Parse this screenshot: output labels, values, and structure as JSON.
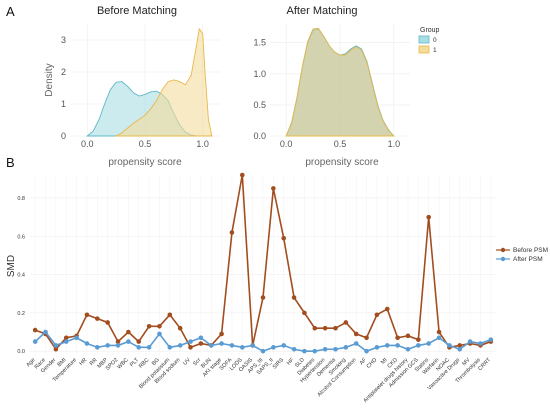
{
  "panel_labels": {
    "a": "A",
    "b": "B"
  },
  "colors": {
    "group0": "#5fb7c7",
    "group1": "#e8b84a",
    "group0_fill": "#a8dde3",
    "group1_fill": "#f4dc9c",
    "overlap_fill": "#c8c89a",
    "before": "#a24d1f",
    "after": "#5a9bd4"
  },
  "chart_data": [
    {
      "type": "area",
      "title": "Before Matching",
      "xlabel": "propensity score",
      "ylabel": "Density",
      "xlim": [
        -0.15,
        1.15
      ],
      "ylim": [
        0,
        3.5
      ],
      "x_ticks": [
        "0.0",
        "0.5",
        "1.0"
      ],
      "y_ticks": [
        "0",
        "1",
        "2",
        "3"
      ],
      "legend": {
        "title": "Group",
        "entries": [
          "0",
          "1"
        ],
        "position": "right"
      },
      "series": [
        {
          "name": "0",
          "x": [
            0.0,
            0.05,
            0.1,
            0.15,
            0.2,
            0.25,
            0.3,
            0.35,
            0.4,
            0.45,
            0.5,
            0.55,
            0.6,
            0.65,
            0.7,
            0.75,
            0.8,
            0.85,
            0.9,
            0.95
          ],
          "values": [
            0.0,
            0.15,
            0.5,
            1.0,
            1.45,
            1.68,
            1.7,
            1.55,
            1.35,
            1.25,
            1.3,
            1.38,
            1.4,
            1.3,
            1.1,
            0.7,
            0.35,
            0.12,
            0.03,
            0.0
          ]
        },
        {
          "name": "1",
          "x": [
            0.25,
            0.3,
            0.35,
            0.4,
            0.45,
            0.5,
            0.55,
            0.6,
            0.65,
            0.7,
            0.75,
            0.8,
            0.85,
            0.9,
            0.95,
            0.97,
            1.0,
            1.02,
            1.05,
            1.08
          ],
          "values": [
            0.0,
            0.1,
            0.25,
            0.4,
            0.52,
            0.65,
            0.85,
            1.1,
            1.45,
            1.7,
            1.75,
            1.7,
            1.6,
            1.9,
            2.9,
            3.35,
            3.2,
            2.0,
            0.5,
            0.0
          ]
        }
      ]
    },
    {
      "type": "area",
      "title": "After Matching",
      "xlabel": "propensity score",
      "ylabel": "",
      "xlim": [
        -0.15,
        1.15
      ],
      "ylim": [
        0,
        1.8
      ],
      "x_ticks": [
        "0.0",
        "0.5",
        "1.0"
      ],
      "y_ticks": [
        "0.0",
        "0.5",
        "1.0",
        "1.5"
      ],
      "series": [
        {
          "name": "0",
          "x": [
            0.0,
            0.05,
            0.1,
            0.15,
            0.2,
            0.25,
            0.3,
            0.35,
            0.4,
            0.45,
            0.5,
            0.55,
            0.6,
            0.65,
            0.7,
            0.75,
            0.8,
            0.85,
            0.9,
            0.95,
            1.0
          ],
          "values": [
            0.0,
            0.2,
            0.6,
            1.1,
            1.5,
            1.7,
            1.72,
            1.6,
            1.45,
            1.35,
            1.3,
            1.32,
            1.4,
            1.45,
            1.4,
            1.2,
            0.85,
            0.5,
            0.25,
            0.1,
            0.0
          ]
        },
        {
          "name": "1",
          "x": [
            0.0,
            0.05,
            0.1,
            0.15,
            0.2,
            0.25,
            0.3,
            0.35,
            0.4,
            0.45,
            0.5,
            0.55,
            0.6,
            0.65,
            0.7,
            0.75,
            0.8,
            0.85,
            0.9,
            0.95,
            1.0
          ],
          "values": [
            0.0,
            0.22,
            0.62,
            1.12,
            1.52,
            1.72,
            1.73,
            1.6,
            1.45,
            1.35,
            1.3,
            1.3,
            1.38,
            1.43,
            1.38,
            1.18,
            0.83,
            0.48,
            0.24,
            0.09,
            0.0
          ]
        }
      ]
    },
    {
      "type": "line",
      "xlabel": "",
      "ylabel": "SMD",
      "ylim": [
        -0.02,
        0.92
      ],
      "y_ticks": [
        "0.0",
        "0.2",
        "0.4",
        "0.6",
        "0.8"
      ],
      "grid": true,
      "legend": {
        "entries": [
          "Before PSM",
          "After PSM"
        ],
        "position": "right"
      },
      "categories": [
        "Age",
        "Race",
        "Gender",
        "BMI",
        "Temperature",
        "HR",
        "RR",
        "MBP",
        "SPO2",
        "WBC",
        "PLT",
        "RBC",
        "BG",
        "Blood potassium",
        "Blood sodium",
        "UV",
        "Scr",
        "BUN",
        "AKI stage",
        "SOFA",
        "LODS",
        "OASIS",
        "APS_III",
        "SAPS_II",
        "SIRS",
        "HF",
        "SLD",
        "Diabetes",
        "Hypertension",
        "Dementia",
        "Smoking",
        "Alcohol Consumption",
        "AF",
        "CHD",
        "MI",
        "CKD",
        "Antiplatelet drugs history",
        "Admission GCS",
        "Statins",
        "Warfarin",
        "NOAC",
        "Vasoactive Drugs",
        "MV",
        "Thrombolysis",
        "CRRT"
      ],
      "series": [
        {
          "name": "Before PSM",
          "values": [
            0.11,
            0.09,
            0.01,
            0.07,
            0.08,
            0.19,
            0.17,
            0.15,
            0.05,
            0.1,
            0.05,
            0.13,
            0.13,
            0.19,
            0.12,
            0.02,
            0.04,
            0.03,
            0.09,
            0.62,
            0.92,
            0.03,
            0.28,
            0.85,
            0.59,
            0.28,
            0.2,
            0.12,
            0.12,
            0.12,
            0.15,
            0.09,
            0.07,
            0.19,
            0.22,
            0.07,
            0.08,
            0.06,
            0.7,
            0.1,
            0.02,
            0.03,
            0.04,
            0.03,
            0.05
          ]
        },
        {
          "name": "After PSM",
          "values": [
            0.05,
            0.1,
            0.03,
            0.05,
            0.07,
            0.04,
            0.02,
            0.03,
            0.03,
            0.05,
            0.02,
            0.02,
            0.09,
            0.02,
            0.03,
            0.05,
            0.07,
            0.03,
            0.04,
            0.03,
            0.02,
            0.03,
            0.0,
            0.02,
            0.03,
            0.01,
            0.0,
            0.0,
            0.01,
            0.01,
            0.02,
            0.04,
            0.0,
            0.02,
            0.03,
            0.03,
            0.01,
            0.03,
            0.04,
            0.07,
            0.03,
            0.01,
            0.05,
            0.04,
            0.06
          ]
        }
      ]
    }
  ]
}
